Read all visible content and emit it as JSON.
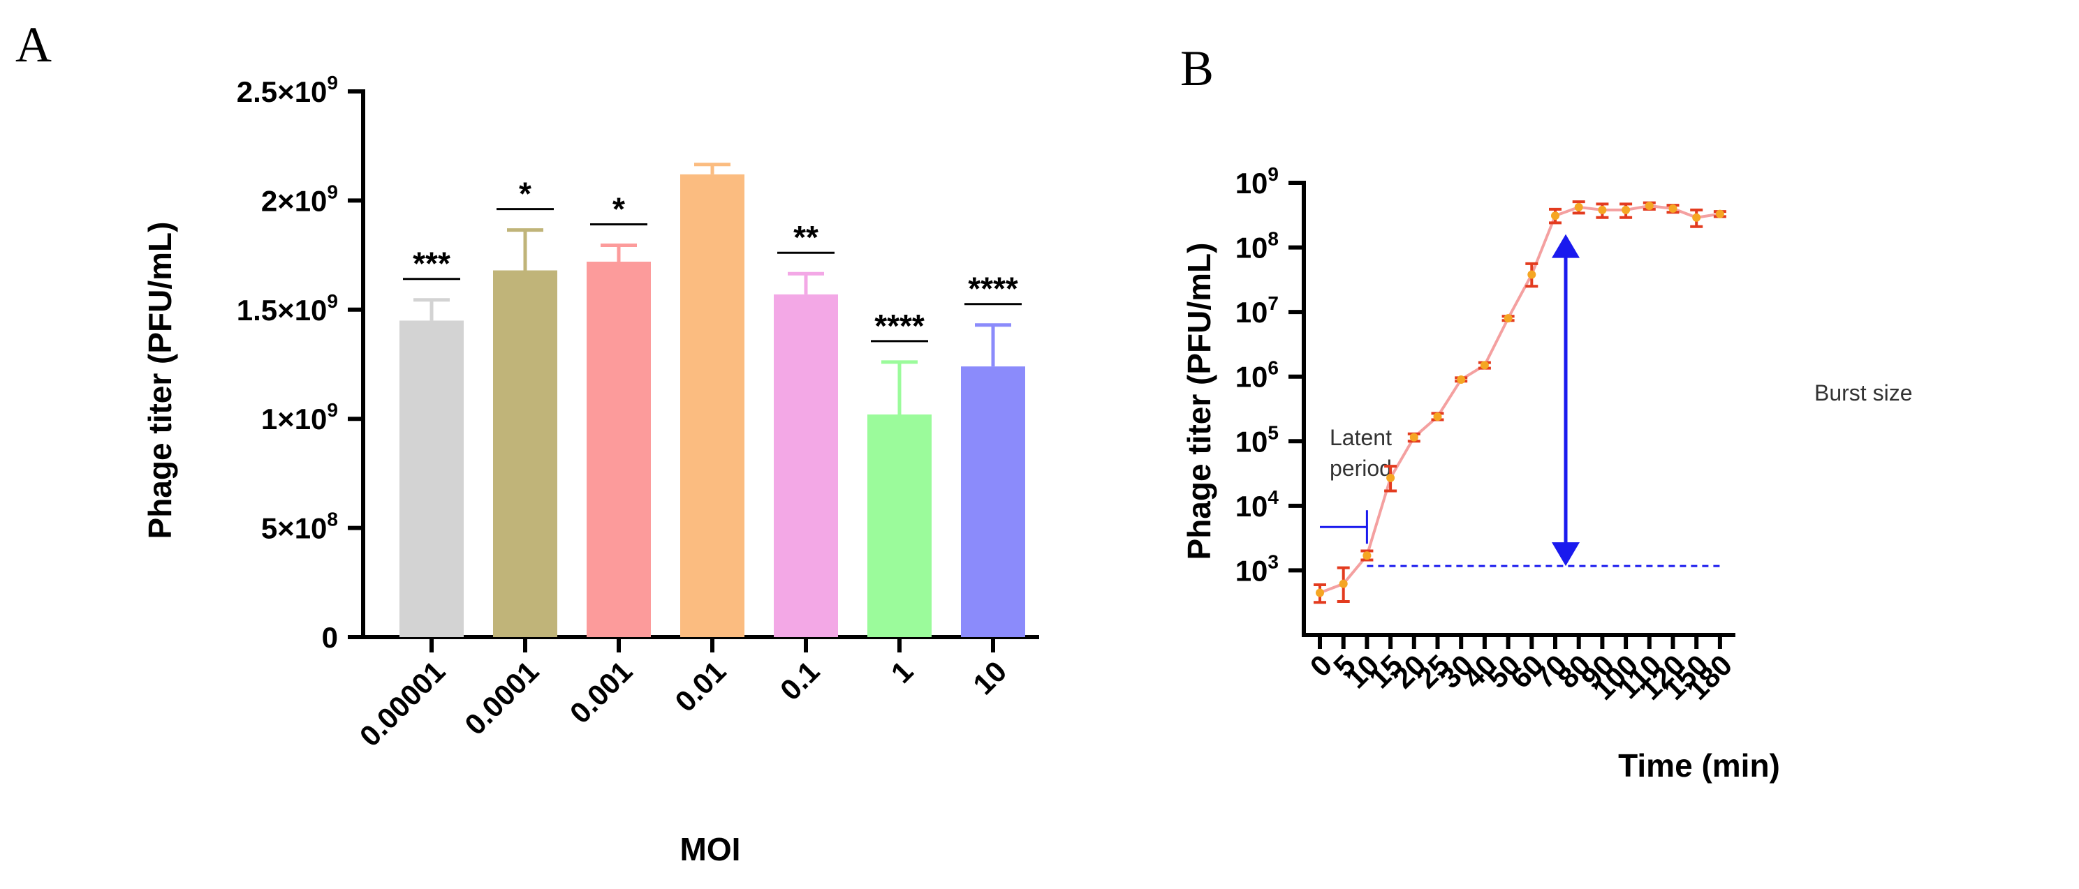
{
  "chart_data": [
    {
      "type": "bar",
      "panel": "A",
      "categories": [
        "0.00001",
        "0.0001",
        "0.001",
        "0.01",
        "0.1",
        "1",
        "10"
      ],
      "values": [
        1450000000,
        1680000000,
        1720000000,
        2120000000,
        1570000000,
        1020000000,
        1240000000
      ],
      "errors": [
        95000000,
        185000000,
        75000000,
        45000000,
        95000000,
        240000000,
        190000000
      ],
      "colors": [
        "#d3d3d3",
        "#c0b479",
        "#fc9b9b",
        "#fbbc80",
        "#f3a8e6",
        "#9bfb9b",
        "#8b8bfb"
      ],
      "significance": [
        "***",
        "*",
        "*",
        "",
        "**",
        "****",
        "****"
      ],
      "xlabel": "MOI",
      "ylabel": "Phage titer (PFU/mL)",
      "ylim": [
        0,
        2500000000
      ],
      "yticks": [
        0,
        500000000,
        1000000000,
        1500000000,
        2000000000,
        2500000000
      ],
      "ytick_labels": [
        {
          "base": "0",
          "exp": ""
        },
        {
          "base": "5×10",
          "exp": "8"
        },
        {
          "base": "1×10",
          "exp": "9"
        },
        {
          "base": "1.5×10",
          "exp": "9"
        },
        {
          "base": "2×10",
          "exp": "9"
        },
        {
          "base": "2.5×10",
          "exp": "9"
        }
      ]
    },
    {
      "type": "line",
      "panel": "B",
      "x": [
        "0",
        "5",
        "10",
        "15",
        "20",
        "25",
        "30",
        "40",
        "50",
        "60",
        "70",
        "80",
        "90",
        "100",
        "110",
        "120",
        "150",
        "180"
      ],
      "values": [
        450,
        620,
        1700,
        27000,
        115000,
        240000,
        900000,
        1500000,
        8000000,
        38000000,
        310000000,
        420000000,
        380000000,
        380000000,
        440000000,
        400000000,
        290000000,
        330000000
      ],
      "err_low": [
        320,
        330,
        1450,
        17000,
        100000,
        215000,
        850000,
        1350000,
        7400000,
        25000000,
        240000000,
        340000000,
        290000000,
        290000000,
        390000000,
        350000000,
        210000000,
        300000000
      ],
      "err_high": [
        600,
        1100,
        2000,
        41000,
        130000,
        270000,
        960000,
        1650000,
        8600000,
        56000000,
        390000000,
        510000000,
        470000000,
        470000000,
        490000000,
        450000000,
        380000000,
        360000000
      ],
      "line_color": "#f4a0a0",
      "marker_color": "#e33b1f",
      "annotation_color": "#1a1aee",
      "xlabel": "Time (min)",
      "ylabel": "Phage titer (PFU/mL)",
      "ylim": [
        100,
        1000000000
      ],
      "log_y": true,
      "yticks": [
        {
          "base": "10",
          "exp": "3"
        },
        {
          "base": "10",
          "exp": "4"
        },
        {
          "base": "10",
          "exp": "5"
        },
        {
          "base": "10",
          "exp": "6"
        },
        {
          "base": "10",
          "exp": "7"
        },
        {
          "base": "10",
          "exp": "8"
        },
        {
          "base": "10",
          "exp": "9"
        }
      ],
      "ytick_values": [
        1000,
        10000,
        100000,
        1000000,
        10000000,
        100000000,
        1000000000
      ],
      "annotations": {
        "latent_line1": "Latent",
        "latent_line2": "period",
        "burst": "Burst size",
        "baseline_value": 1170,
        "latent_level": 4700,
        "latent_start_x": "0",
        "latent_end_x": "10",
        "burst_x": "70",
        "burst_top": 160000000,
        "burst_bottom": 1170
      }
    }
  ]
}
